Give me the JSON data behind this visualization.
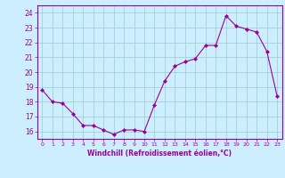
{
  "x": [
    0,
    1,
    2,
    3,
    4,
    5,
    6,
    7,
    8,
    9,
    10,
    11,
    12,
    13,
    14,
    15,
    16,
    17,
    18,
    19,
    20,
    21,
    22,
    23
  ],
  "y": [
    18.8,
    18.0,
    17.9,
    17.2,
    16.4,
    16.4,
    16.1,
    15.8,
    16.1,
    16.1,
    16.0,
    17.8,
    19.4,
    20.4,
    20.7,
    20.9,
    21.8,
    21.8,
    23.8,
    23.1,
    22.9,
    22.7,
    21.4,
    18.4
  ],
  "line_color": "#990099",
  "marker": "D",
  "marker_size": 2.0,
  "bg_color": "#cceeff",
  "grid_color": "#99cccc",
  "xlabel": "Windchill (Refroidissement éolien,°C)",
  "xlabel_color": "#990099",
  "tick_color": "#990099",
  "ylim": [
    15.5,
    24.5
  ],
  "yticks": [
    16,
    17,
    18,
    19,
    20,
    21,
    22,
    23,
    24
  ],
  "xlim": [
    -0.5,
    23.5
  ]
}
